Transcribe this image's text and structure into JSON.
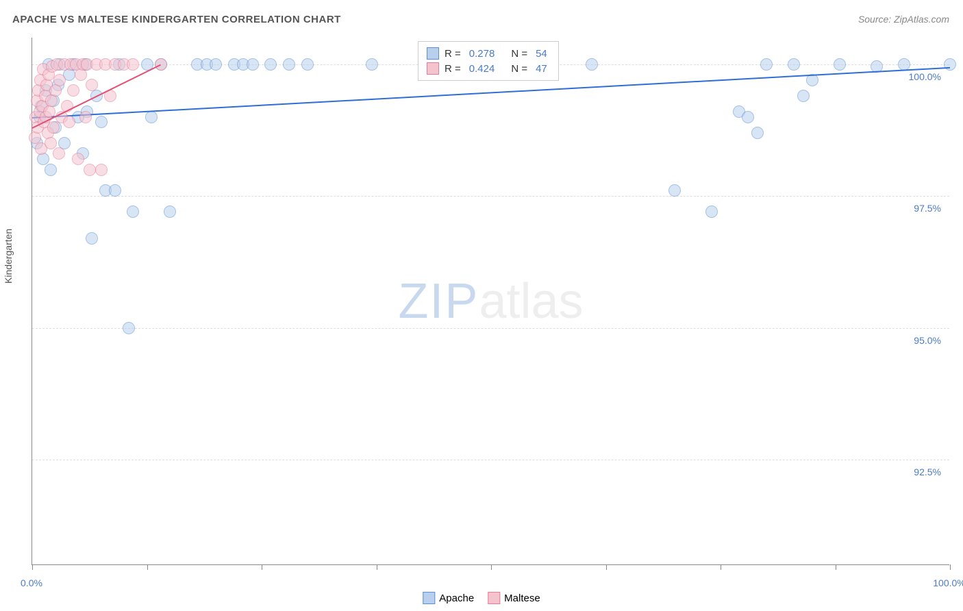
{
  "title": "APACHE VS MALTESE KINDERGARTEN CORRELATION CHART",
  "source": "Source: ZipAtlas.com",
  "y_axis_label": "Kindergarten",
  "watermark_zip": "ZIP",
  "watermark_atlas": "atlas",
  "chart": {
    "type": "scatter",
    "background_color": "#ffffff",
    "grid_color": "#dddddd",
    "axis_color": "#888888",
    "xlim": [
      0,
      100
    ],
    "ylim": [
      90.5,
      100.5
    ],
    "x_ticks": [
      0,
      12.5,
      25,
      37.5,
      50,
      62.5,
      75,
      87.5,
      100
    ],
    "x_tick_labels": {
      "0": "0.0%",
      "100": "100.0%"
    },
    "y_ticks": [
      92.5,
      95.0,
      97.5,
      100.0
    ],
    "y_tick_labels": [
      "92.5%",
      "95.0%",
      "97.5%",
      "100.0%"
    ],
    "series": [
      {
        "name": "Apache",
        "fill": "#b8d0ee",
        "stroke": "#5b8fd6",
        "fill_opacity": 0.55,
        "marker_r": 9,
        "R": "0.278",
        "N": "54",
        "trend": {
          "x1": 0,
          "y1": 99.0,
          "x2": 100,
          "y2": 99.95,
          "color": "#2e6fd6",
          "width": 2
        },
        "points": [
          [
            0.5,
            98.5
          ],
          [
            0.8,
            99.0
          ],
          [
            1.0,
            99.2
          ],
          [
            1.2,
            98.2
          ],
          [
            1.5,
            99.5
          ],
          [
            1.8,
            100.0
          ],
          [
            2.0,
            98.0
          ],
          [
            2.3,
            99.3
          ],
          [
            2.5,
            98.8
          ],
          [
            2.8,
            99.6
          ],
          [
            3.0,
            100.0
          ],
          [
            3.5,
            98.5
          ],
          [
            4.0,
            99.8
          ],
          [
            4.5,
            100.0
          ],
          [
            5.0,
            99.0
          ],
          [
            5.5,
            98.3
          ],
          [
            5.8,
            100.0
          ],
          [
            6.0,
            99.1
          ],
          [
            6.5,
            96.7
          ],
          [
            7.0,
            99.4
          ],
          [
            7.5,
            98.9
          ],
          [
            8.0,
            97.6
          ],
          [
            9.0,
            97.6
          ],
          [
            9.5,
            100.0
          ],
          [
            10.5,
            95.0
          ],
          [
            11.0,
            97.2
          ],
          [
            12.5,
            100.0
          ],
          [
            13.0,
            99.0
          ],
          [
            14.0,
            100.0
          ],
          [
            15.0,
            97.2
          ],
          [
            18.0,
            100.0
          ],
          [
            19.0,
            100.0
          ],
          [
            20.0,
            100.0
          ],
          [
            22.0,
            100.0
          ],
          [
            23.0,
            100.0
          ],
          [
            24.0,
            100.0
          ],
          [
            26.0,
            100.0
          ],
          [
            28.0,
            100.0
          ],
          [
            30.0,
            100.0
          ],
          [
            37.0,
            100.0
          ],
          [
            61.0,
            100.0
          ],
          [
            70.0,
            97.6
          ],
          [
            74.0,
            97.2
          ],
          [
            77.0,
            99.1
          ],
          [
            78.0,
            99.0
          ],
          [
            80.0,
            100.0
          ],
          [
            79.0,
            98.7
          ],
          [
            83.0,
            100.0
          ],
          [
            84.0,
            99.4
          ],
          [
            85.0,
            99.7
          ],
          [
            88.0,
            100.0
          ],
          [
            92.0,
            99.95
          ],
          [
            95.0,
            100.0
          ],
          [
            100.0,
            100.0
          ]
        ]
      },
      {
        "name": "Maltese",
        "fill": "#f5c3ce",
        "stroke": "#e77a94",
        "fill_opacity": 0.55,
        "marker_r": 9,
        "R": "0.424",
        "N": "47",
        "trend": {
          "x1": 0,
          "y1": 98.8,
          "x2": 14,
          "y2": 100.0,
          "color": "#e24f73",
          "width": 2
        },
        "points": [
          [
            0.3,
            98.6
          ],
          [
            0.4,
            99.0
          ],
          [
            0.5,
            99.3
          ],
          [
            0.6,
            98.8
          ],
          [
            0.7,
            99.5
          ],
          [
            0.8,
            99.1
          ],
          [
            0.9,
            99.7
          ],
          [
            1.0,
            98.4
          ],
          [
            1.1,
            99.2
          ],
          [
            1.2,
            99.9
          ],
          [
            1.3,
            98.9
          ],
          [
            1.4,
            99.4
          ],
          [
            1.5,
            99.0
          ],
          [
            1.6,
            99.6
          ],
          [
            1.7,
            98.7
          ],
          [
            1.8,
            99.8
          ],
          [
            1.9,
            99.1
          ],
          [
            2.0,
            98.5
          ],
          [
            2.1,
            99.3
          ],
          [
            2.2,
            99.95
          ],
          [
            2.3,
            98.8
          ],
          [
            2.5,
            99.5
          ],
          [
            2.7,
            100.0
          ],
          [
            2.9,
            98.3
          ],
          [
            3.0,
            99.7
          ],
          [
            3.2,
            99.0
          ],
          [
            3.5,
            100.0
          ],
          [
            3.8,
            99.2
          ],
          [
            4.0,
            98.9
          ],
          [
            4.2,
            100.0
          ],
          [
            4.5,
            99.5
          ],
          [
            4.8,
            100.0
          ],
          [
            5.0,
            98.2
          ],
          [
            5.3,
            99.8
          ],
          [
            5.5,
            100.0
          ],
          [
            5.8,
            99.0
          ],
          [
            6.0,
            100.0
          ],
          [
            6.3,
            98.0
          ],
          [
            6.5,
            99.6
          ],
          [
            7.0,
            100.0
          ],
          [
            7.5,
            98.0
          ],
          [
            8.0,
            100.0
          ],
          [
            8.5,
            99.4
          ],
          [
            9.0,
            100.0
          ],
          [
            10.0,
            100.0
          ],
          [
            11.0,
            100.0
          ],
          [
            14.0,
            100.0
          ]
        ]
      }
    ]
  },
  "legend": {
    "top_box": {
      "R_label": "R =",
      "N_label": "N ="
    },
    "bottom": [
      {
        "label": "Apache",
        "fill": "#b8d0ee",
        "stroke": "#5b8fd6"
      },
      {
        "label": "Maltese",
        "fill": "#f5c3ce",
        "stroke": "#e77a94"
      }
    ]
  }
}
